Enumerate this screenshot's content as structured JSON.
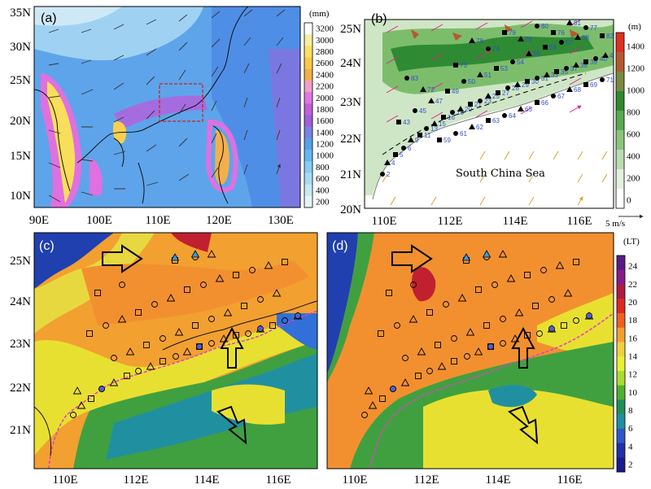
{
  "panels": {
    "a": {
      "label": "(a)",
      "lat_ticks": [
        "35N",
        "30N",
        "25N",
        "20N",
        "15N",
        "10N"
      ],
      "lon_ticks": [
        "90E",
        "100E",
        "110E",
        "120E",
        "130E"
      ],
      "colorbar_unit": "(mm)",
      "colorbar_ticks": [
        "3200",
        "3000",
        "2800",
        "2600",
        "2400",
        "2200",
        "2000",
        "1800",
        "1600",
        "1400",
        "1200",
        "1000",
        "800",
        "600",
        "400",
        "200"
      ],
      "colorbar_colors": [
        "#ffffff",
        "#f4f0a0",
        "#fbe068",
        "#f9c848",
        "#f2b04a",
        "#eea0c8",
        "#e078e0",
        "#c060d8",
        "#a060d8",
        "#7c82e0",
        "#5aa0e8",
        "#60b8ee",
        "#88cdf2",
        "#a8dcf4",
        "#c8e8f4",
        "#e6f4fa"
      ]
    },
    "b": {
      "label": "(b)",
      "lat_ticks": [
        "25N",
        "24N",
        "23N",
        "22N",
        "21N",
        "20N"
      ],
      "lon_ticks": [
        "110E",
        "112E",
        "114E",
        "116E"
      ],
      "sea_label": "South China Sea",
      "colorbar_unit": "(m)",
      "colorbar_ticks": [
        "1400",
        "1200",
        "1000",
        "800",
        "600",
        "400",
        "200",
        "0"
      ],
      "colorbar_colors": [
        "#e03020",
        "#b45a30",
        "#7a8a40",
        "#2e8a30",
        "#58aa50",
        "#8cc47c",
        "#bcdcb2",
        "#e4f0e0",
        "#ffffff"
      ],
      "vector_scale": "5 m/s"
    },
    "c": {
      "label": "(c)",
      "lat_ticks": [
        "25N",
        "24N",
        "23N",
        "22N",
        "21N"
      ],
      "lon_ticks": [
        "110E",
        "112E",
        "114E",
        "116E"
      ]
    },
    "d": {
      "label": "(d)",
      "lat_ticks": [
        "25N",
        "24N",
        "23N",
        "22N",
        "21N"
      ],
      "lon_ticks": [
        "110E",
        "112E",
        "114E",
        "116E"
      ],
      "colorbar_unit": "(LT)",
      "colorbar_ticks": [
        "24",
        "22",
        "20",
        "18",
        "16",
        "14",
        "12",
        "10",
        "8",
        "6",
        "4",
        "2"
      ],
      "colorbar_colors": [
        "#5a1a86",
        "#8a1a8a",
        "#b01a40",
        "#e02820",
        "#f06020",
        "#f3a030",
        "#f0d040",
        "#e8f030",
        "#a8dc30",
        "#50b030",
        "#209058",
        "#2090a0",
        "#3058c8",
        "#2030a8",
        "#1a1a90"
      ]
    }
  },
  "station_numbers": [
    "2",
    "4",
    "5",
    "6",
    "9",
    "11",
    "13",
    "15",
    "16",
    "18",
    "20",
    "21",
    "23",
    "25",
    "27",
    "28",
    "29",
    "30",
    "31",
    "33",
    "35",
    "37",
    "38",
    "39",
    "40",
    "41",
    "43",
    "45",
    "47",
    "49",
    "50",
    "51",
    "53",
    "54",
    "55",
    "56",
    "57",
    "58",
    "59",
    "61",
    "62",
    "63",
    "64",
    "65",
    "66",
    "67",
    "68",
    "69",
    "71",
    "72",
    "73",
    "74",
    "75",
    "76",
    "77",
    "78",
    "79",
    "80",
    "81",
    "82",
    "83"
  ],
  "colors": {
    "coast": "#111111",
    "sea_line": "#e040c0",
    "box": "#cc2222",
    "wind_vec": "#e0208a",
    "wind_vec_orange": "#e0a030"
  }
}
